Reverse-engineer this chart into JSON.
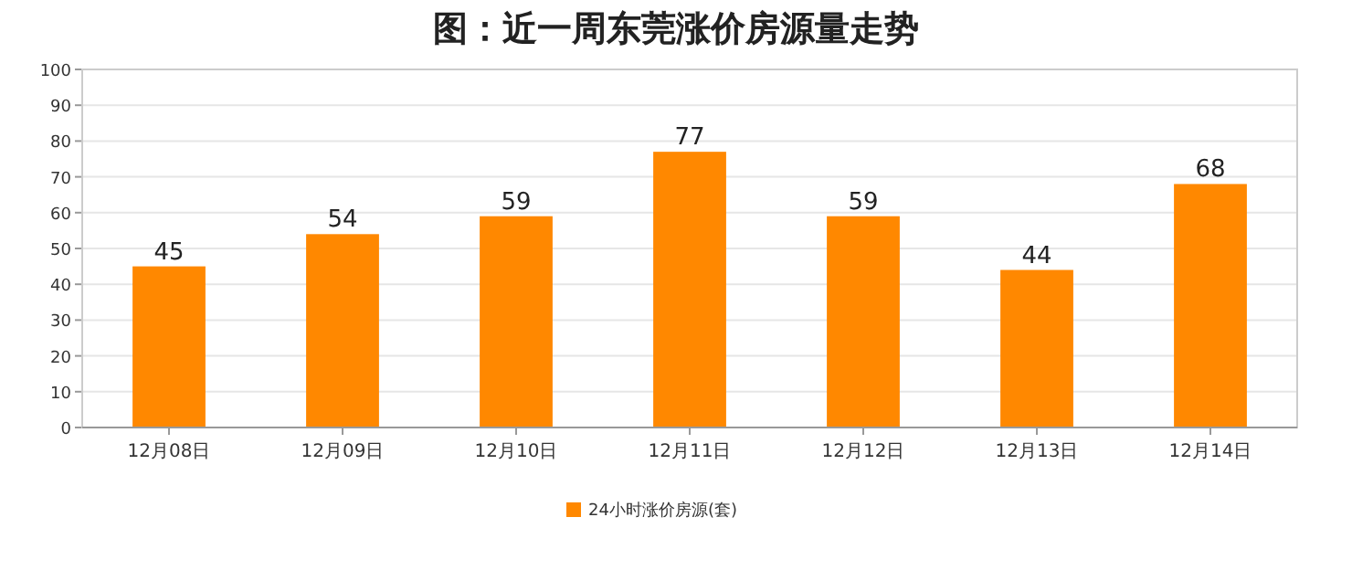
{
  "chart_data": {
    "type": "bar",
    "title": "图：近一周东莞涨价房源量走势",
    "categories": [
      "12月08日",
      "12月09日",
      "12月10日",
      "12月11日",
      "12月12日",
      "12月13日",
      "12月14日"
    ],
    "series": [
      {
        "name": "24小时涨价房源(套)",
        "color": "#ff8800",
        "values": [
          45,
          54,
          59,
          77,
          59,
          44,
          68
        ]
      }
    ],
    "ylim": [
      0,
      100
    ],
    "yticks": [
      0,
      10,
      20,
      30,
      40,
      50,
      60,
      70,
      80,
      90,
      100
    ],
    "grid": "y",
    "legend": "bottom",
    "data_labels": true
  }
}
